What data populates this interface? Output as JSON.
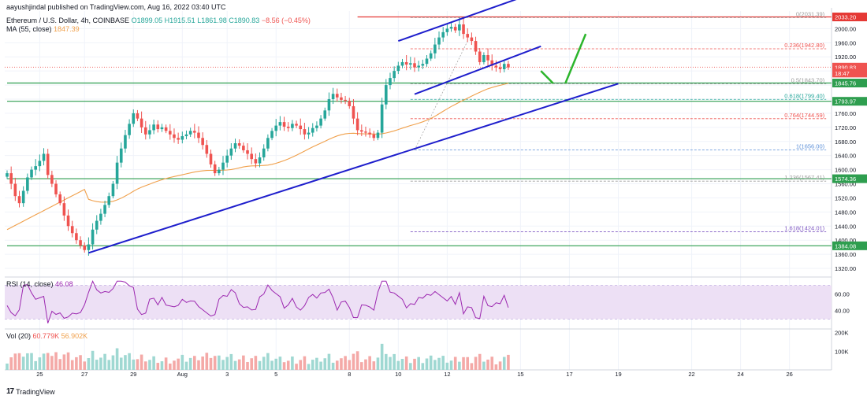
{
  "header": {
    "published_by": "aayushjindal published on TradingView.com, Aug 16, 2022 03:40 UTC",
    "symbol": "Ethereum / U.S. Dollar, 4h, COINBASE",
    "open": "O1899.05",
    "high": "H1915.51",
    "low": "L1861.98",
    "close": "C1890.83",
    "change": "−8.56 (−0.45%)",
    "ma_label": "MA (55, close)",
    "ma_value": "1847.39"
  },
  "rsi": {
    "label": "RSI (14, close)",
    "value": "46.08"
  },
  "volume": {
    "label": "Vol (20)",
    "value1": "60.779K",
    "value2": "56.902K"
  },
  "brand": {
    "logo": "17",
    "name": "TradingView"
  },
  "colors": {
    "up": "#26a69a",
    "down": "#ef5350",
    "ma": "#f0a04b",
    "trendline": "#1e1ecc",
    "support": "#2e9e4f",
    "arrow": "#2cb52c",
    "resistance": "#e53935",
    "rsi": "#9c27b0",
    "rsi_band": "#ede0f5"
  },
  "chart_data": {
    "type": "candlestick",
    "price_axis": {
      "currency": "USD",
      "ticks": [
        1320,
        1360,
        1400,
        1440,
        1480,
        1520,
        1560,
        1600,
        1640,
        1680,
        1720,
        1760,
        1800,
        1840,
        1880,
        1920,
        1960,
        2000
      ],
      "range": [
        1320,
        2050
      ],
      "price_labels": [
        {
          "text": "2033.20",
          "value": 2033.2,
          "color": "#e53935"
        },
        {
          "text": "1890.83",
          "value": 1890.83,
          "color": "#ef5350"
        },
        {
          "text": "18:47",
          "value": 1874,
          "color": "#ef5350"
        },
        {
          "text": "1845.76",
          "value": 1845.76,
          "color": "#2e9e4f"
        },
        {
          "text": "1793.97",
          "value": 1793.97,
          "color": "#2e9e4f"
        },
        {
          "text": "1574.36",
          "value": 1574.36,
          "color": "#2e9e4f"
        },
        {
          "text": "1384.08",
          "value": 1384.08,
          "color": "#2e9e4f"
        }
      ]
    },
    "x_axis": {
      "ticks": [
        {
          "label": "25",
          "index": 8
        },
        {
          "label": "27",
          "index": 19
        },
        {
          "label": "29",
          "index": 31
        },
        {
          "label": "Aug",
          "index": 43
        },
        {
          "label": "3",
          "index": 54
        },
        {
          "label": "5",
          "index": 66
        },
        {
          "label": "8",
          "index": 84
        },
        {
          "label": "10",
          "index": 96
        },
        {
          "label": "12",
          "index": 108
        },
        {
          "label": "15",
          "index": 126
        },
        {
          "label": "17",
          "index": 138
        },
        {
          "label": "19",
          "index": 150
        },
        {
          "label": "22",
          "index": 168
        },
        {
          "label": "24",
          "index": 180
        },
        {
          "label": "26",
          "index": 192
        }
      ]
    },
    "horizontal_levels": [
      {
        "name": "resistance",
        "value": 2033.2,
        "color": "#e53935",
        "from_index": 86
      },
      {
        "name": "support",
        "value": 1845.76,
        "color": "#2e9e4f",
        "from_index": 0
      },
      {
        "name": "support",
        "value": 1793.97,
        "color": "#2e9e4f",
        "from_index": 0
      },
      {
        "name": "support",
        "value": 1574.36,
        "color": "#2e9e4f",
        "from_index": 0
      },
      {
        "name": "support",
        "value": 1384.08,
        "color": "#2e9e4f",
        "from_index": 0
      }
    ],
    "fibonacci": [
      {
        "label": "0(2031.39)",
        "value": 2031.39,
        "color": "#9e9e9e"
      },
      {
        "label": "0.236(1942.80)",
        "value": 1942.8,
        "color": "#ef5350"
      },
      {
        "label": "0.5(1843.70)",
        "value": 1843.7,
        "color": "#9e9e9e"
      },
      {
        "label": "0.618(1799.40)",
        "value": 1799.4,
        "color": "#26a69a"
      },
      {
        "label": "0.764(1744.59)",
        "value": 1744.59,
        "color": "#ef5350"
      },
      {
        "label": "1(1656.00)",
        "value": 1656.0,
        "color": "#5b8fd8"
      },
      {
        "label": "1.236(1567.41)",
        "value": 1567.41,
        "color": "#9e9e9e"
      },
      {
        "label": "1.618(1424.01)",
        "value": 1424.01,
        "color": "#7e57c2"
      }
    ],
    "trendlines": [
      {
        "name": "main-uptrend",
        "from": [
          20,
          1364
        ],
        "to": [
          150,
          1844
        ]
      },
      {
        "name": "channel-upper",
        "from": [
          96,
          1965
        ],
        "to": [
          131,
          2108
        ]
      },
      {
        "name": "channel-lower",
        "from": [
          100,
          1814
        ],
        "to": [
          131,
          1950
        ]
      }
    ],
    "arrows": [
      {
        "name": "pullback",
        "points": [
          [
            131,
            1880
          ],
          [
            134,
            1845
          ]
        ],
        "color": "#2cb52c"
      },
      {
        "name": "rally",
        "points": [
          [
            137,
            1845
          ],
          [
            142,
            1985
          ]
        ],
        "color": "#2cb52c"
      }
    ],
    "closes": [
      1590,
      1560,
      1525,
      1505,
      1540,
      1578,
      1600,
      1610,
      1625,
      1645,
      1585,
      1560,
      1530,
      1505,
      1470,
      1440,
      1420,
      1400,
      1385,
      1372,
      1388,
      1430,
      1455,
      1475,
      1500,
      1525,
      1560,
      1620,
      1660,
      1698,
      1730,
      1760,
      1745,
      1720,
      1700,
      1712,
      1728,
      1715,
      1720,
      1710,
      1700,
      1690,
      1685,
      1695,
      1700,
      1710,
      1705,
      1690,
      1670,
      1645,
      1615,
      1590,
      1600,
      1620,
      1640,
      1660,
      1675,
      1668,
      1655,
      1645,
      1630,
      1618,
      1635,
      1660,
      1690,
      1710,
      1725,
      1735,
      1722,
      1718,
      1730,
      1725,
      1715,
      1700,
      1705,
      1718,
      1725,
      1745,
      1768,
      1800,
      1815,
      1805,
      1798,
      1795,
      1780,
      1745,
      1712,
      1708,
      1705,
      1700,
      1690,
      1705,
      1785,
      1840,
      1860,
      1880,
      1895,
      1905,
      1898,
      1902,
      1890,
      1895,
      1900,
      1915,
      1930,
      1955,
      1975,
      1990,
      2000,
      2005,
      1995,
      2012,
      1985,
      1975,
      1965,
      1935,
      1905,
      1925,
      1910,
      1895,
      1890,
      1885,
      1900,
      1890
    ]
  }
}
